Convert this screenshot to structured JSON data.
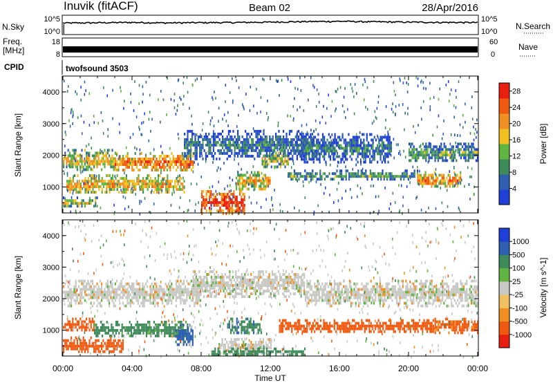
{
  "header": {
    "station": "Inuvik (fitACF)",
    "beam": "Beam 02",
    "date": "28/Apr/2016"
  },
  "nsky_panel": {
    "label": "N.Sky",
    "right_label": "N.Search",
    "left_ticks": [
      "10^5",
      "10^0"
    ],
    "right_ticks": [
      "10^5",
      "10^0"
    ]
  },
  "freq_panel": {
    "label_line1": "Freq.",
    "label_line2": "[MHz]",
    "left_ticks": [
      "18",
      "8"
    ],
    "right_ticks": [
      "60",
      "0"
    ],
    "right_label": "Nave"
  },
  "cpid": {
    "label": "CPID",
    "program": "twofsound 3503"
  },
  "axes": {
    "ylabel": "Slant Range [km]",
    "xlabel": "Time UT",
    "yticks": [
      "4000",
      "3000",
      "2000",
      "1000"
    ],
    "xticks": [
      "00:00",
      "04:00",
      "08:00",
      "12:00",
      "16:00",
      "20:00",
      "00:00"
    ]
  },
  "colors": {
    "power": [
      "#1f3fd6",
      "#2f5fb0",
      "#3f8a5a",
      "#5fb540",
      "#f0c020",
      "#f09020",
      "#f05a10",
      "#e81e10"
    ],
    "velocity": [
      "#e81e10",
      "#f05a10",
      "#f09020",
      "#f0c060",
      "#c8c8c4",
      "#5fb540",
      "#3f8a5a",
      "#2f5fb0",
      "#1f3fd6"
    ]
  },
  "chart_data": [
    {
      "type": "line",
      "title": "N.Sky / N.Search",
      "x_range_hours": [
        0,
        24
      ],
      "yscale": "log",
      "series": [
        {
          "name": "N.Sky",
          "x": [
            0,
            2,
            4,
            6,
            8,
            10,
            12,
            14,
            16,
            18,
            20,
            22,
            24
          ],
          "y": [
            1000,
            1200,
            1500,
            1100,
            1300,
            1400,
            1800,
            2500,
            3000,
            2200,
            1800,
            1500,
            1400
          ]
        }
      ]
    },
    {
      "type": "line",
      "title": "Freq. / Nave",
      "x_range_hours": [
        0,
        24
      ],
      "ylim": [
        8,
        18
      ],
      "series": [
        {
          "name": "Freq.",
          "x": [
            0,
            24
          ],
          "y": [
            10.5,
            10.5
          ]
        }
      ]
    },
    {
      "type": "heatmap",
      "ylabel": "Slant Range [km]",
      "x_range_hours": [
        0,
        24
      ],
      "ylim_km": [
        180,
        4500
      ],
      "colorbar": {
        "label": "Power [dB]",
        "ticks": [
          "28",
          "24",
          "20",
          "16",
          "12",
          "8",
          "4"
        ],
        "range": [
          0,
          30
        ]
      },
      "bands": [
        {
          "t_start": 0.0,
          "t_end": 3.0,
          "r_low": 1550,
          "r_high": 2200,
          "value": 18
        },
        {
          "t_start": 3.0,
          "t_end": 7.5,
          "r_low": 1500,
          "r_high": 2100,
          "value": 24
        },
        {
          "t_start": 0.2,
          "t_end": 7.0,
          "r_low": 800,
          "r_high": 1400,
          "value": 20
        },
        {
          "t_start": 0.0,
          "t_end": 2.0,
          "r_low": 400,
          "r_high": 700,
          "value": 16
        },
        {
          "t_start": 7.0,
          "t_end": 14.5,
          "r_low": 1900,
          "r_high": 2800,
          "value": 8
        },
        {
          "t_start": 8.0,
          "t_end": 10.5,
          "r_low": 200,
          "r_high": 900,
          "value": 28
        },
        {
          "t_start": 10.0,
          "t_end": 12.0,
          "r_low": 900,
          "r_high": 1500,
          "value": 20
        },
        {
          "t_start": 11.5,
          "t_end": 13.0,
          "r_low": 1600,
          "r_high": 2200,
          "value": 16
        },
        {
          "t_start": 13.0,
          "t_end": 20.5,
          "r_low": 1250,
          "r_high": 1550,
          "value": 12
        },
        {
          "t_start": 13.5,
          "t_end": 19.0,
          "r_low": 1800,
          "r_high": 2700,
          "value": 8
        },
        {
          "t_start": 20.0,
          "t_end": 24.0,
          "r_low": 1800,
          "r_high": 2400,
          "value": 12
        },
        {
          "t_start": 20.5,
          "t_end": 23.0,
          "r_low": 1000,
          "r_high": 1500,
          "value": 22
        }
      ]
    },
    {
      "type": "heatmap",
      "ylabel": "Slant Range [km]",
      "xlabel": "Time UT",
      "x_range_hours": [
        0,
        24
      ],
      "ylim_km": [
        180,
        4500
      ],
      "colorbar": {
        "label": "Velocity [m s^-1]",
        "ticks": [
          "1000",
          "500",
          "100",
          "25",
          "-25",
          "-100",
          "-500",
          "-1000"
        ],
        "range": [
          -1000,
          1000
        ]
      },
      "bands": [
        {
          "t_start": 0.0,
          "t_end": 8.0,
          "r_low": 1800,
          "r_high": 2600,
          "value": 0
        },
        {
          "t_start": 7.5,
          "t_end": 14.0,
          "r_low": 2100,
          "r_high": 2900,
          "value": 0
        },
        {
          "t_start": 14.0,
          "t_end": 24.0,
          "r_low": 1800,
          "r_high": 2600,
          "value": 0
        },
        {
          "t_start": 0.0,
          "t_end": 1.8,
          "r_low": 1000,
          "r_high": 1400,
          "value": -300
        },
        {
          "t_start": 1.8,
          "t_end": 7.2,
          "r_low": 800,
          "r_high": 1300,
          "value": 150
        },
        {
          "t_start": 6.5,
          "t_end": 7.5,
          "r_low": 500,
          "r_high": 1200,
          "value": 800
        },
        {
          "t_start": 0.0,
          "t_end": 3.5,
          "r_low": 300,
          "r_high": 800,
          "value": -300
        },
        {
          "t_start": 9.0,
          "t_end": 12.0,
          "r_low": 250,
          "r_high": 750,
          "value": 0
        },
        {
          "t_start": 8.5,
          "t_end": 14.0,
          "r_low": 200,
          "r_high": 450,
          "value": 200
        },
        {
          "t_start": 9.5,
          "t_end": 11.5,
          "r_low": 900,
          "r_high": 1400,
          "value": 400
        },
        {
          "t_start": 12.5,
          "t_end": 21.5,
          "r_low": 950,
          "r_high": 1350,
          "value": -200
        },
        {
          "t_start": 21.5,
          "t_end": 24.0,
          "r_low": 900,
          "r_high": 1400,
          "value": -150
        }
      ]
    }
  ]
}
